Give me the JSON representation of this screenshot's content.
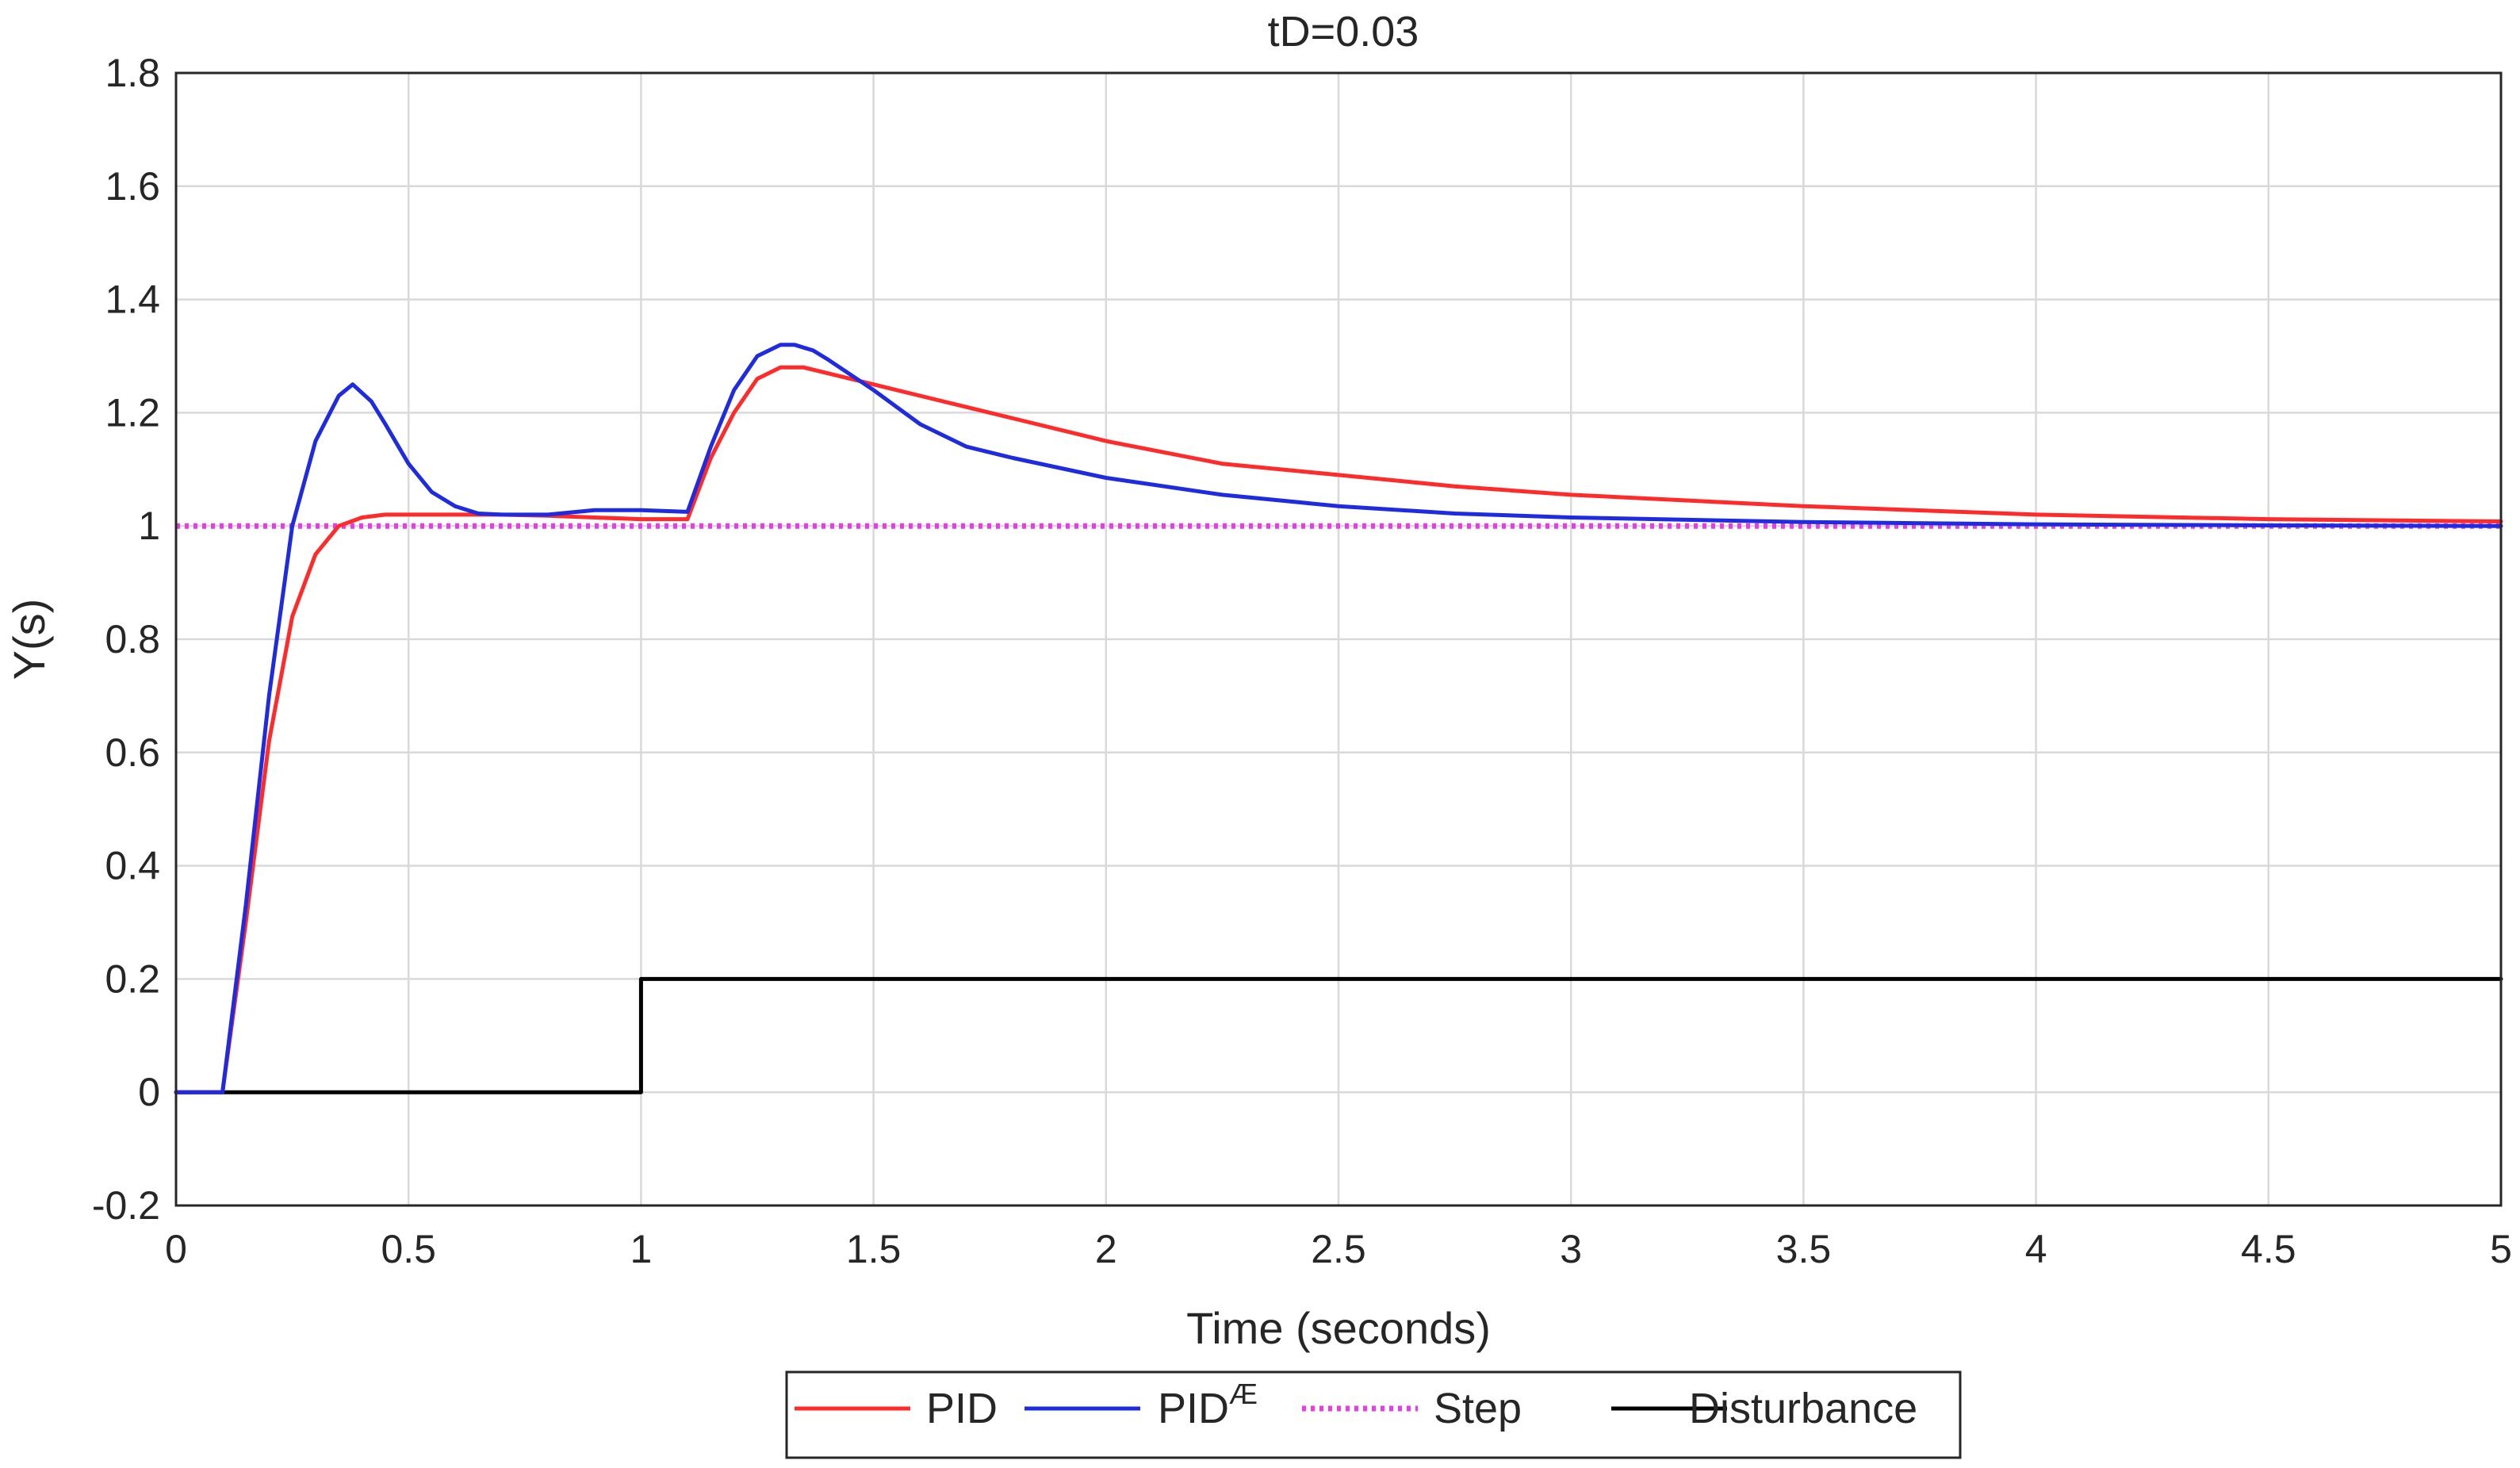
{
  "chart_data": {
    "type": "line",
    "title": "tD=0.03",
    "xlabel": "Time (seconds)",
    "ylabel": "Y(s)",
    "xlim": [
      0,
      5
    ],
    "ylim": [
      -0.2,
      1.8
    ],
    "xticks": [
      0,
      0.5,
      1,
      1.5,
      2,
      2.5,
      3,
      3.5,
      4,
      4.5,
      5
    ],
    "xtick_labels": [
      "0",
      "0.5",
      "1",
      "1.5",
      "2",
      "2.5",
      "3",
      "3.5",
      "4",
      "4.5",
      "5"
    ],
    "yticks": [
      -0.2,
      0,
      0.2,
      0.4,
      0.6,
      0.8,
      1,
      1.2,
      1.4,
      1.6,
      1.8
    ],
    "ytick_labels": [
      "-0.2",
      "0",
      "0.2",
      "0.4",
      "0.6",
      "0.8",
      "1",
      "1.2",
      "1.4",
      "1.6",
      "1.8"
    ],
    "grid": true,
    "legend_position": "bottom-center",
    "series": [
      {
        "name": "PID",
        "legend_base": "PID",
        "legend_sup": "",
        "color": "#ff2a2a",
        "style": "solid",
        "x": [
          0,
          0.1,
          0.15,
          0.2,
          0.25,
          0.3,
          0.35,
          0.4,
          0.45,
          0.5,
          0.6,
          0.7,
          0.8,
          0.9,
          1.0,
          1.1,
          1.15,
          1.2,
          1.25,
          1.3,
          1.35,
          1.4,
          1.5,
          1.6,
          1.8,
          2.0,
          2.25,
          2.5,
          2.75,
          3.0,
          3.5,
          4.0,
          4.5,
          5.0
        ],
        "y": [
          0,
          0,
          0.3,
          0.62,
          0.84,
          0.95,
          1.0,
          1.015,
          1.02,
          1.02,
          1.02,
          1.02,
          1.018,
          1.015,
          1.012,
          1.012,
          1.12,
          1.2,
          1.26,
          1.28,
          1.28,
          1.27,
          1.25,
          1.23,
          1.19,
          1.15,
          1.11,
          1.09,
          1.07,
          1.055,
          1.035,
          1.02,
          1.012,
          1.008
        ]
      },
      {
        "name": "PID^Æ",
        "legend_base": "PID",
        "legend_sup": "Æ",
        "color": "#1f2be0",
        "style": "solid",
        "x": [
          0,
          0.1,
          0.15,
          0.2,
          0.25,
          0.3,
          0.35,
          0.38,
          0.42,
          0.45,
          0.5,
          0.55,
          0.6,
          0.65,
          0.7,
          0.8,
          0.9,
          1.0,
          1.1,
          1.15,
          1.2,
          1.25,
          1.3,
          1.33,
          1.37,
          1.4,
          1.5,
          1.6,
          1.7,
          1.8,
          2.0,
          2.25,
          2.5,
          2.75,
          3.0,
          3.5,
          4.0,
          4.5,
          5.0
        ],
        "y": [
          0,
          0,
          0.33,
          0.7,
          1.0,
          1.15,
          1.23,
          1.25,
          1.22,
          1.18,
          1.11,
          1.06,
          1.035,
          1.022,
          1.02,
          1.02,
          1.028,
          1.028,
          1.025,
          1.14,
          1.24,
          1.3,
          1.32,
          1.32,
          1.31,
          1.295,
          1.24,
          1.18,
          1.14,
          1.12,
          1.085,
          1.055,
          1.035,
          1.022,
          1.015,
          1.007,
          1.003,
          1.001,
          1.0
        ]
      },
      {
        "name": "Step",
        "legend_base": "Step",
        "legend_sup": "",
        "color": "#e83ce8",
        "style": "dotted",
        "x": [
          0,
          5
        ],
        "y": [
          1,
          1
        ]
      },
      {
        "name": "Disturbance",
        "legend_base": "Disturbance",
        "legend_sup": "",
        "color": "#000000",
        "style": "solid",
        "x": [
          0,
          1,
          1,
          5
        ],
        "y": [
          0,
          0,
          0.2,
          0.2
        ]
      }
    ]
  }
}
